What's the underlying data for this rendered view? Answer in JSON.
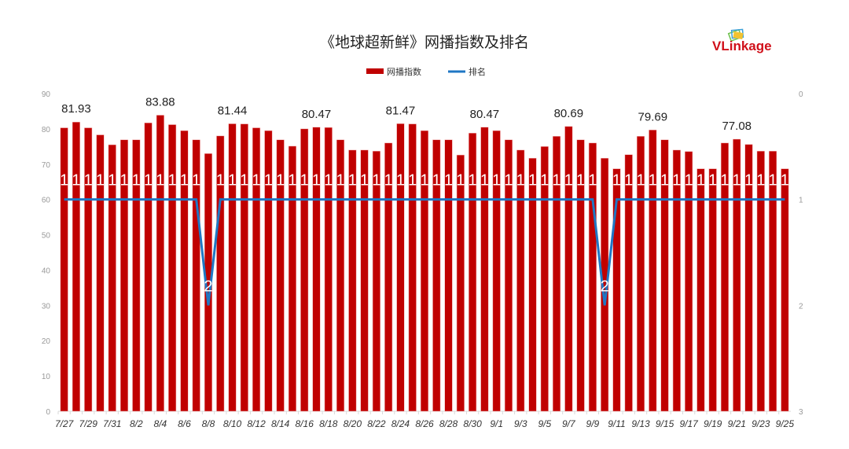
{
  "chart_data": {
    "type": "bar",
    "title": "《地球超新鲜》网播指数及排名",
    "logo_text": "VLinkage",
    "categories": [
      "7/27",
      "7/28",
      "7/29",
      "7/30",
      "7/31",
      "8/1",
      "8/2",
      "8/3",
      "8/4",
      "8/5",
      "8/6",
      "8/7",
      "8/8",
      "8/9",
      "8/10",
      "8/11",
      "8/12",
      "8/13",
      "8/14",
      "8/15",
      "8/16",
      "8/17",
      "8/18",
      "8/19",
      "8/20",
      "8/21",
      "8/22",
      "8/23",
      "8/24",
      "8/25",
      "8/26",
      "8/27",
      "8/28",
      "8/29",
      "8/30",
      "8/31",
      "9/1",
      "9/2",
      "9/3",
      "9/4",
      "9/5",
      "9/6",
      "9/7",
      "9/8",
      "9/9",
      "9/10",
      "9/11",
      "9/12",
      "9/13",
      "9/14",
      "9/15",
      "9/16",
      "9/17",
      "9/18",
      "9/19",
      "9/20",
      "9/21",
      "9/22",
      "9/23",
      "9/24",
      "9/25"
    ],
    "series": [
      {
        "name": "网播指数",
        "type": "bar",
        "axis": "left",
        "color": "#c00000",
        "values": [
          80.3,
          81.93,
          80.3,
          78.3,
          75.5,
          76.9,
          76.9,
          81.7,
          83.88,
          81.2,
          79.5,
          76.9,
          73.0,
          78.0,
          81.44,
          81.4,
          80.3,
          79.5,
          76.9,
          75.1,
          80.0,
          80.47,
          80.4,
          76.9,
          74.0,
          74.0,
          73.7,
          76.0,
          81.47,
          81.4,
          79.5,
          76.9,
          76.9,
          72.6,
          78.8,
          80.47,
          79.5,
          76.9,
          74.0,
          71.7,
          75.0,
          77.9,
          80.69,
          76.9,
          76.0,
          71.7,
          68.7,
          72.7,
          77.9,
          79.69,
          76.9,
          74.0,
          73.6,
          68.7,
          68.7,
          76.0,
          77.08,
          75.6,
          73.7,
          73.7,
          68.7
        ],
        "data_labels": {
          "7/28": "81.93",
          "8/4": "83.88",
          "8/10": "81.44",
          "8/17": "80.47",
          "8/24": "81.47",
          "8/31": "80.47",
          "9/7": "80.69",
          "9/14": "79.69",
          "9/21": "77.08"
        }
      },
      {
        "name": "排名",
        "type": "line",
        "axis": "right",
        "color": "#1f77c4",
        "values": [
          1,
          1,
          1,
          1,
          1,
          1,
          1,
          1,
          1,
          1,
          1,
          1,
          2,
          1,
          1,
          1,
          1,
          1,
          1,
          1,
          1,
          1,
          1,
          1,
          1,
          1,
          1,
          1,
          1,
          1,
          1,
          1,
          1,
          1,
          1,
          1,
          1,
          1,
          1,
          1,
          1,
          1,
          1,
          1,
          1,
          2,
          1,
          1,
          1,
          1,
          1,
          1,
          1,
          1,
          1,
          1,
          1,
          1,
          1,
          1,
          1
        ]
      }
    ],
    "ylim": [
      0,
      90
    ],
    "yticks": [
      "0",
      "10",
      "20",
      "30",
      "40",
      "50",
      "60",
      "70",
      "80",
      "90"
    ],
    "y2lim": [
      0,
      3
    ],
    "y2_inverted": true,
    "y2ticks": [
      "0",
      "1",
      "2",
      "3"
    ],
    "xtick_every": 2,
    "legend_position": "top-center",
    "grid": false
  }
}
